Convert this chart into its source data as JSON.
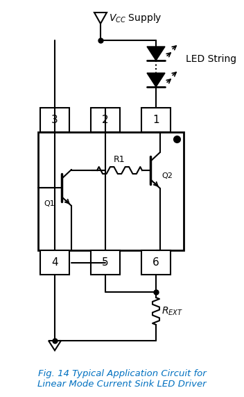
{
  "title": "Fig. 14 Typical Application Circuit for\nLinear Mode Current Sink LED Driver",
  "title_color": "#0070C0",
  "title_fontsize": 9.5,
  "bg_color": "#ffffff",
  "line_color": "#000000",
  "figsize": [
    3.52,
    5.71
  ],
  "dpi": 100,
  "vcc_label": "$V_{CC}$ Supply",
  "led_label": "LED String",
  "rext_label": "$R_{EXT}$",
  "r1_label": "R1",
  "q1_label": "Q1",
  "q2_label": "Q2"
}
